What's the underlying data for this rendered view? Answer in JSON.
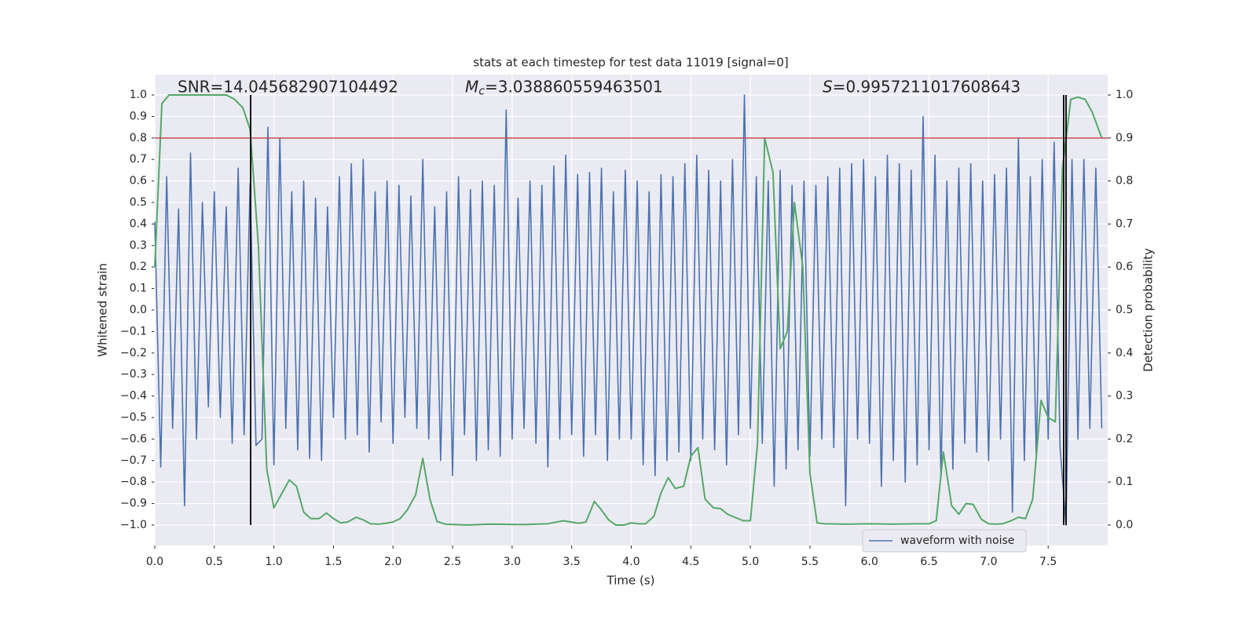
{
  "chart_data": {
    "type": "line",
    "title": "stats at each timestep for test data 11019 [signal=0]",
    "xlabel": "Time (s)",
    "ylabel": "Whitened strain",
    "y2label": "Detection probability",
    "annotations": [
      {
        "text": "SNR=14.045682907104492"
      },
      {
        "symbol": "M",
        "subscript": "c",
        "text": "=3.038860559463501"
      },
      {
        "symbol": "S",
        "text": "=0.9957211017608643"
      }
    ],
    "xlim": [
      0,
      8.0
    ],
    "ylim": [
      -1.095,
      1.095
    ],
    "y2lim": [
      -0.0475,
      1.0475
    ],
    "xticks": [
      {
        "value": 0,
        "label": "0.0"
      },
      0.5,
      {
        "value": 1,
        "label": "1.0"
      },
      1.5,
      {
        "value": 2,
        "label": "2.0"
      },
      2.5,
      {
        "value": 3,
        "label": "3.0"
      },
      3.5,
      {
        "value": 4,
        "label": "4.0"
      },
      4.5,
      {
        "value": 5,
        "label": "5.0"
      },
      5.5,
      {
        "value": 6,
        "label": "6.0"
      },
      6.5,
      {
        "value": 7,
        "label": "7.0"
      },
      7.5
    ],
    "yticks": [
      {
        "value": -1,
        "label": "−1.0"
      },
      {
        "value": -0.9,
        "label": "−0.9"
      },
      {
        "value": -0.8,
        "label": "−0.8"
      },
      {
        "value": -0.7,
        "label": "−0.7"
      },
      {
        "value": -0.6,
        "label": "−0.6"
      },
      {
        "value": -0.5,
        "label": "−0.5"
      },
      {
        "value": -0.4,
        "label": "−0.4"
      },
      {
        "value": -0.3,
        "label": "−0.3"
      },
      {
        "value": -0.2,
        "label": "−0.2"
      },
      {
        "value": -0.1,
        "label": "−0.1"
      },
      {
        "value": 0,
        "label": "0.0"
      },
      0.1,
      0.2,
      0.3,
      0.4,
      0.5,
      0.6,
      0.7,
      0.8,
      0.9,
      {
        "value": 1,
        "label": "1.0"
      }
    ],
    "y2ticks": [
      {
        "value": 0,
        "label": "0.0"
      },
      0.1,
      0.2,
      0.3,
      0.4,
      0.5,
      0.6,
      0.7,
      0.8,
      0.9,
      {
        "value": 1,
        "label": "1.0"
      }
    ],
    "grid": true,
    "legend": "lower right",
    "hline": 0.8,
    "hline_color": "#c44e52",
    "vlines": [
      0.805,
      7.63,
      7.65
    ],
    "vline_span": [
      -1,
      1
    ],
    "vline_color": "#000000",
    "series": [
      {
        "name": "waveform with noise",
        "color": "#4c72b0",
        "x": [
          0,
          0.05,
          0.1,
          0.15,
          0.2,
          0.25,
          0.3,
          0.35,
          0.4,
          0.45,
          0.5,
          0.55,
          0.6,
          0.65,
          0.7,
          0.75,
          0.8,
          0.85,
          0.9,
          0.95,
          1,
          1.05,
          1.1,
          1.15,
          1.2,
          1.25,
          1.3,
          1.35,
          1.4,
          1.45,
          1.5,
          1.55,
          1.6,
          1.65,
          1.7,
          1.75,
          1.8,
          1.85,
          1.9,
          1.95,
          2,
          2.05,
          2.1,
          2.15,
          2.2,
          2.25,
          2.3,
          2.35,
          2.4,
          2.45,
          2.5,
          2.55,
          2.6,
          2.65,
          2.7,
          2.75,
          2.8,
          2.85,
          2.9,
          2.95,
          3,
          3.05,
          3.1,
          3.15,
          3.2,
          3.25,
          3.3,
          3.35,
          3.4,
          3.45,
          3.5,
          3.55,
          3.6,
          3.65,
          3.7,
          3.75,
          3.8,
          3.85,
          3.9,
          3.95,
          4,
          4.05,
          4.1,
          4.15,
          4.2,
          4.25,
          4.3,
          4.35,
          4.4,
          4.45,
          4.5,
          4.55,
          4.6,
          4.65,
          4.7,
          4.75,
          4.8,
          4.85,
          4.9,
          4.95,
          5,
          5.05,
          5.1,
          5.15,
          5.2,
          5.25,
          5.3,
          5.35,
          5.4,
          5.45,
          5.5,
          5.55,
          5.6,
          5.65,
          5.7,
          5.75,
          5.8,
          5.85,
          5.9,
          5.95,
          6,
          6.05,
          6.1,
          6.15,
          6.2,
          6.25,
          6.3,
          6.35,
          6.4,
          6.45,
          6.5,
          6.55,
          6.6,
          6.65,
          6.7,
          6.75,
          6.8,
          6.85,
          6.9,
          6.95,
          7,
          7.05,
          7.1,
          7.15,
          7.2,
          7.25,
          7.3,
          7.35,
          7.4,
          7.45,
          7.5,
          7.55,
          7.6,
          7.65,
          7.7,
          7.75,
          7.8,
          7.85,
          7.9,
          7.95
        ],
        "values": [
          0.41,
          -0.73,
          0.62,
          -0.55,
          0.47,
          -0.91,
          0.73,
          -0.6,
          0.5,
          -0.45,
          0.55,
          -0.5,
          0.48,
          -0.62,
          0.66,
          -0.58,
          0.59,
          -0.63,
          -0.6,
          0.85,
          -0.72,
          0.8,
          -0.55,
          0.55,
          -0.65,
          0.6,
          -0.69,
          0.52,
          -0.7,
          0.48,
          -0.5,
          0.62,
          -0.6,
          0.68,
          -0.58,
          0.7,
          -0.66,
          0.55,
          -0.52,
          0.6,
          -0.62,
          0.58,
          -0.5,
          0.53,
          -0.55,
          0.7,
          -0.6,
          0.48,
          -0.7,
          0.55,
          -0.77,
          0.62,
          -0.58,
          0.56,
          -0.7,
          0.6,
          -0.65,
          0.58,
          -0.68,
          0.93,
          -0.6,
          0.52,
          -0.55,
          0.6,
          -0.62,
          0.58,
          -0.73,
          0.67,
          -0.6,
          0.72,
          -0.58,
          0.63,
          -0.68,
          0.64,
          -0.58,
          0.66,
          -0.7,
          0.55,
          -0.6,
          0.65,
          -0.6,
          0.6,
          -0.72,
          0.55,
          -0.77,
          0.63,
          -0.7,
          0.62,
          -0.66,
          0.68,
          -0.7,
          0.72,
          -0.6,
          0.65,
          -0.65,
          0.6,
          -0.72,
          0.7,
          -0.58,
          1.0,
          -0.55,
          0.62,
          -0.62,
          0.6,
          -0.82,
          0.65,
          -0.74,
          0.58,
          -0.65,
          0.6,
          -0.68,
          0.58,
          -0.6,
          0.62,
          -0.64,
          0.66,
          -0.91,
          0.68,
          -0.6,
          0.7,
          -0.62,
          0.62,
          -0.82,
          0.72,
          -0.7,
          0.68,
          -0.8,
          0.65,
          -0.72,
          0.9,
          -0.65,
          0.72,
          -0.78,
          0.6,
          -0.74,
          0.66,
          -0.62,
          0.68,
          -0.66,
          0.6,
          -0.7,
          0.63,
          -0.6,
          0.66,
          -0.94,
          0.8,
          -0.7,
          0.62,
          -0.68,
          0.7,
          -0.6,
          0.78,
          -0.64,
          -1.0,
          0.7,
          -0.6,
          0.7,
          -0.55,
          0.66,
          -0.55
        ]
      },
      {
        "color": "#55a868",
        "axis": "y2",
        "x": [
          0,
          0.06,
          0.12,
          0.6,
          0.67,
          0.74,
          0.8,
          0.87,
          0.94,
          1,
          1.06,
          1.13,
          1.19,
          1.25,
          1.31,
          1.38,
          1.44,
          1.5,
          1.56,
          1.62,
          1.69,
          1.75,
          1.81,
          1.88,
          1.94,
          2,
          2.06,
          2.12,
          2.19,
          2.25,
          2.31,
          2.37,
          2.44,
          2.62,
          2.8,
          3.1,
          3.3,
          3.43,
          3.56,
          3.62,
          3.69,
          3.75,
          3.81,
          3.87,
          3.94,
          4,
          4.06,
          4.12,
          4.19,
          4.25,
          4.31,
          4.37,
          4.44,
          4.5,
          4.56,
          4.62,
          4.69,
          4.75,
          4.81,
          4.87,
          4.94,
          5,
          5.06,
          5.12,
          5.19,
          5.25,
          5.31,
          5.37,
          5.44,
          5.5,
          5.56,
          5.62,
          5.8,
          6,
          6.2,
          6.4,
          6.5,
          6.56,
          6.62,
          6.69,
          6.75,
          6.81,
          6.87,
          6.94,
          7,
          7.06,
          7.12,
          7.19,
          7.25,
          7.31,
          7.37,
          7.44,
          7.5,
          7.56,
          7.62,
          7.69,
          7.75,
          7.81,
          7.87,
          7.95
        ],
        "values": [
          0.6,
          0.98,
          1.0,
          1.0,
          0.99,
          0.97,
          0.92,
          0.65,
          0.13,
          0.04,
          0.07,
          0.105,
          0.09,
          0.03,
          0.015,
          0.015,
          0.028,
          0.015,
          0.005,
          0.007,
          0.018,
          0.012,
          0.003,
          0.002,
          0.004,
          0.007,
          0.015,
          0.035,
          0.07,
          0.155,
          0.06,
          0.008,
          0.002,
          0.0,
          0.002,
          0.001,
          0.003,
          0.01,
          0.004,
          0.007,
          0.055,
          0.035,
          0.012,
          0.0,
          0.0,
          0.005,
          0.003,
          0.003,
          0.02,
          0.075,
          0.11,
          0.085,
          0.09,
          0.16,
          0.18,
          0.06,
          0.04,
          0.038,
          0.025,
          0.018,
          0.01,
          0.01,
          0.19,
          0.9,
          0.82,
          0.41,
          0.45,
          0.75,
          0.6,
          0.12,
          0.005,
          0.003,
          0.002,
          0.003,
          0.002,
          0.003,
          0.003,
          0.01,
          0.17,
          0.045,
          0.025,
          0.05,
          0.048,
          0.013,
          0.003,
          0.002,
          0.003,
          0.01,
          0.018,
          0.015,
          0.06,
          0.29,
          0.25,
          0.24,
          0.83,
          0.99,
          0.995,
          0.99,
          0.96,
          0.9
        ]
      }
    ]
  }
}
